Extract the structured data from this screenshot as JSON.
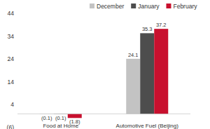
{
  "chart_data": {
    "type": "bar",
    "categories": [
      "Food at Home",
      "Automotive Fuel (Beijing)"
    ],
    "series": [
      {
        "name": "December",
        "color": "#c3c3c3",
        "values": [
          -0.1,
          24.1
        ],
        "value_labels": [
          "(0.1)",
          "24.1"
        ]
      },
      {
        "name": "January",
        "color": "#4d4d4d",
        "values": [
          -0.1,
          35.3
        ],
        "value_labels": [
          "(0.1)",
          "35.3"
        ]
      },
      {
        "name": "February",
        "color": "#c8102e",
        "values": [
          -1.8,
          37.2
        ],
        "value_labels": [
          "(1.8)",
          "37.2"
        ]
      }
    ],
    "ylim": [
      -6,
      44
    ],
    "yticks": [
      {
        "value": -6,
        "label": "(6)"
      },
      4,
      14,
      24,
      34,
      44
    ],
    "grid": false,
    "legend": "top",
    "data_labels": true
  }
}
